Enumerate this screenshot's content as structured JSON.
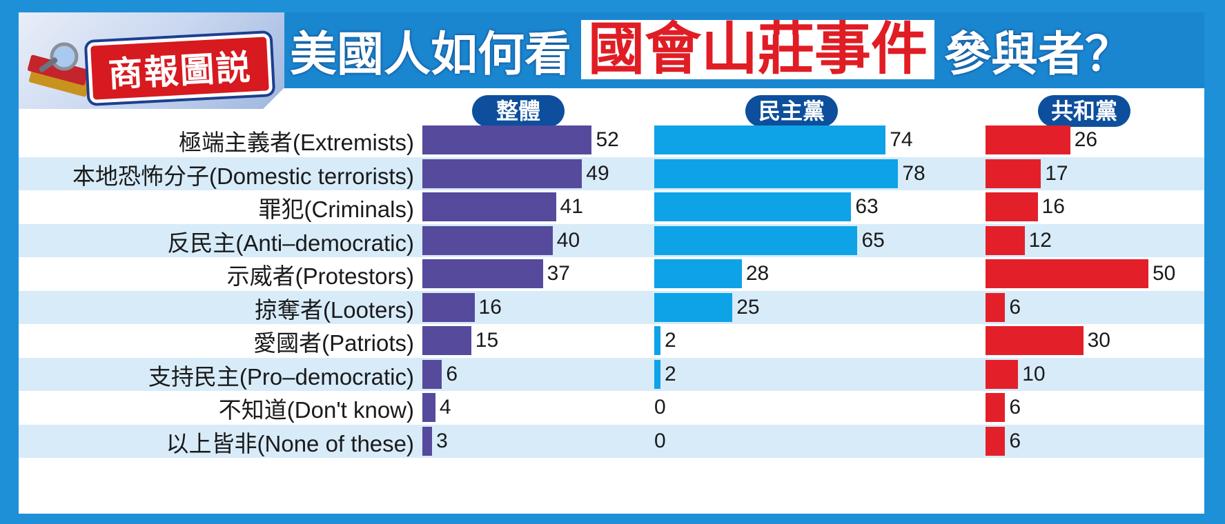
{
  "header": {
    "logo_text": "商報圖説",
    "title_part1": "美國人如何看",
    "title_highlight": "國會山莊事件",
    "title_part2": "參與者？"
  },
  "colors": {
    "overall": "#554a9c",
    "democrats": "#0ea3e6",
    "republicans": "#e3202a",
    "frame": "#1e90d8",
    "pill": "#0d4f9c"
  },
  "icons": [
    "book-magnifier-icon"
  ],
  "chart_data": {
    "type": "bar",
    "orientation": "horizontal",
    "categories": [
      "極端主義者(Extremists)",
      "本地恐怖分子(Domestic terrorists)",
      "罪犯(Criminals)",
      "反民主(Anti–democratic)",
      "示威者(Protestors)",
      "掠奪者(Looters)",
      "愛國者(Patriots)",
      "支持民主(Pro–democratic)",
      "不知道(Don't know)",
      "以上皆非(None of these)"
    ],
    "series": [
      {
        "name": "整體",
        "values": [
          52,
          49,
          41,
          40,
          37,
          16,
          15,
          6,
          4,
          3
        ]
      },
      {
        "name": "民主黨",
        "values": [
          74,
          78,
          63,
          65,
          28,
          25,
          2,
          2,
          0,
          0
        ]
      },
      {
        "name": "共和黨",
        "values": [
          26,
          17,
          16,
          12,
          50,
          6,
          30,
          10,
          6,
          6
        ]
      }
    ],
    "xlim": [
      0,
      100
    ]
  }
}
